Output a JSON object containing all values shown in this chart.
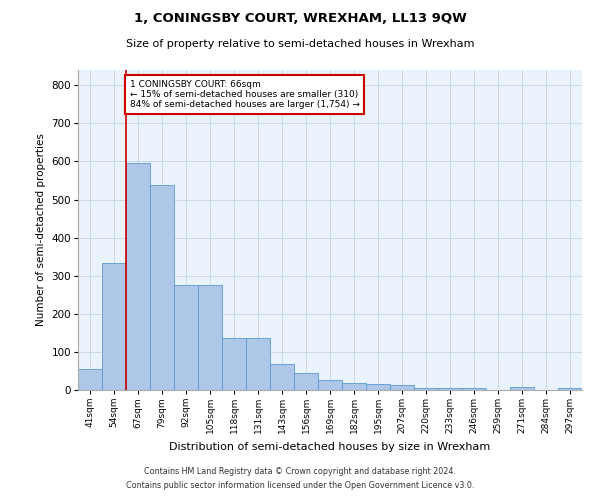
{
  "title": "1, CONINGSBY COURT, WREXHAM, LL13 9QW",
  "subtitle": "Size of property relative to semi-detached houses in Wrexham",
  "xlabel": "Distribution of semi-detached houses by size in Wrexham",
  "ylabel": "Number of semi-detached properties",
  "categories": [
    "41sqm",
    "54sqm",
    "67sqm",
    "79sqm",
    "92sqm",
    "105sqm",
    "118sqm",
    "131sqm",
    "143sqm",
    "156sqm",
    "169sqm",
    "182sqm",
    "195sqm",
    "207sqm",
    "220sqm",
    "233sqm",
    "246sqm",
    "259sqm",
    "271sqm",
    "284sqm",
    "297sqm"
  ],
  "values": [
    55,
    333,
    597,
    537,
    275,
    275,
    137,
    137,
    67,
    45,
    25,
    18,
    15,
    12,
    5,
    6,
    6,
    0,
    8,
    0,
    5
  ],
  "bar_color": "#aec6e8",
  "bar_edge_color": "#5b9bd5",
  "property_line_x": 2,
  "property_sqm": 66,
  "pct_smaller": 15,
  "count_smaller": 310,
  "pct_larger": 84,
  "count_larger": 1754,
  "annotation_text_line1": "1 CONINGSBY COURT: 66sqm",
  "annotation_text_line2": "← 15% of semi-detached houses are smaller (310)",
  "annotation_text_line3": "84% of semi-detached houses are larger (1,754) →",
  "annotation_box_color": "#ffffff",
  "annotation_border_color": "#cc0000",
  "grid_color": "#c8d8e8",
  "background_color": "#eaf2fb",
  "footer_line1": "Contains HM Land Registry data © Crown copyright and database right 2024.",
  "footer_line2": "Contains public sector information licensed under the Open Government Licence v3.0.",
  "ylim": [
    0,
    840
  ],
  "yticks": [
    0,
    100,
    200,
    300,
    400,
    500,
    600,
    700,
    800
  ]
}
